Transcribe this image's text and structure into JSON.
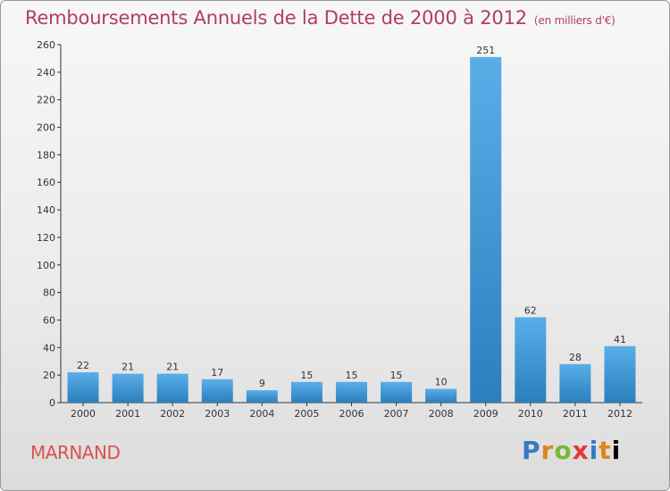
{
  "header": {
    "title": "Remboursements Annuels de la Dette de 2000 à 2012",
    "unit": "(en milliers d'€)"
  },
  "footer": {
    "commune": "MARNAND",
    "logo": [
      "P",
      "r",
      "o",
      "x",
      "i",
      "t",
      "i"
    ]
  },
  "colors": {
    "title": "#b23a6e",
    "bar_top": "#5aaee8",
    "bar_bottom": "#2a7fbd",
    "commune": "#d9534f"
  },
  "chart_data": {
    "type": "bar",
    "categories": [
      "2000",
      "2001",
      "2002",
      "2003",
      "2004",
      "2005",
      "2006",
      "2007",
      "2008",
      "2009",
      "2010",
      "2011",
      "2012"
    ],
    "values": [
      22,
      21,
      21,
      17,
      9,
      15,
      15,
      15,
      10,
      251,
      62,
      28,
      41
    ],
    "ylim": [
      0,
      260
    ],
    "yticks": [
      0,
      20,
      40,
      60,
      80,
      100,
      120,
      140,
      160,
      180,
      200,
      220,
      240,
      260
    ],
    "grid": false,
    "title": "Remboursements Annuels de la Dette de 2000 à 2012",
    "xlabel": "",
    "ylabel": ""
  }
}
